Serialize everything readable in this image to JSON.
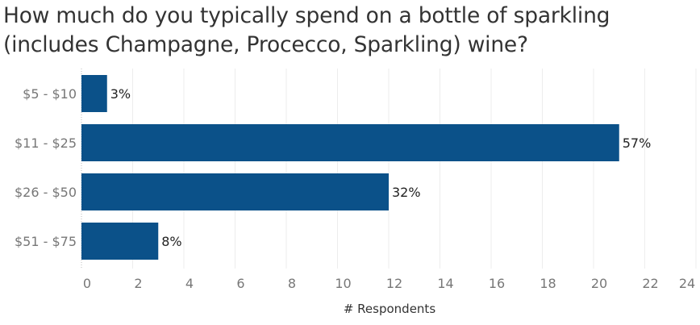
{
  "chart_data": {
    "type": "bar",
    "orientation": "horizontal",
    "title": "How much do you typically spend on a bottle of sparkling (includes Champagne, Procecco, Sparkling) wine?",
    "categories": [
      "$5 - $10",
      "$11 - $25",
      "$26 - $50",
      "$51 - $75"
    ],
    "values": [
      1,
      21,
      12,
      3
    ],
    "data_labels": [
      "3%",
      "57%",
      "32%",
      "8%"
    ],
    "xlabel": "# Respondents",
    "ylabel": "",
    "xlim": [
      0,
      24
    ],
    "xticks": [
      "0",
      "2",
      "4",
      "6",
      "8",
      "10",
      "12",
      "14",
      "16",
      "18",
      "20",
      "22",
      "24"
    ],
    "grid": true,
    "bar_color": "#0b5189"
  }
}
